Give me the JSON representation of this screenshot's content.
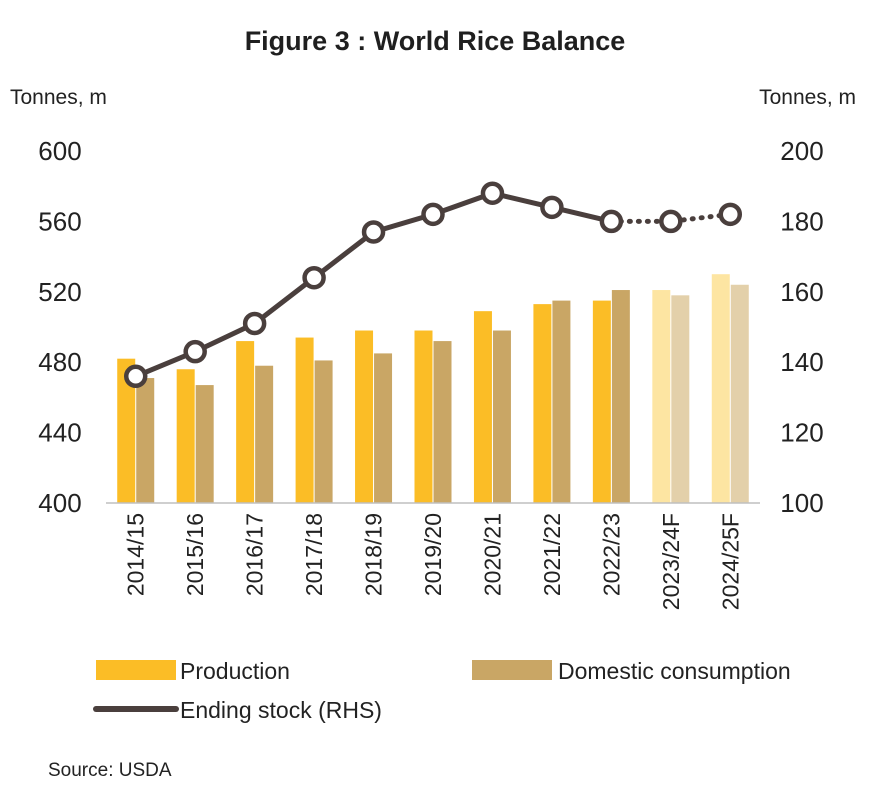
{
  "chart_data": {
    "type": "bar",
    "title": "Figure 3 : World Rice Balance",
    "ylabel_left": "Tonnes, m",
    "ylabel_right": "Tonnes, m",
    "ylim_left": [
      400,
      600
    ],
    "yticks_left": [
      "400",
      "440",
      "480",
      "520",
      "560",
      "600"
    ],
    "ylim_right": [
      100,
      200
    ],
    "yticks_right": [
      "100",
      "120",
      "140",
      "160",
      "180",
      "200"
    ],
    "categories": [
      "2014/15",
      "2015/16",
      "2016/17",
      "2017/18",
      "2018/19",
      "2019/20",
      "2020/21",
      "2021/22",
      "2022/23",
      "2023/24F",
      "2024/25F"
    ],
    "forecast_from_index": 9,
    "series": [
      {
        "name": "Production",
        "type": "bar",
        "axis": "left",
        "color": "#fbbd26",
        "forecast_color": "#fde5a2",
        "values": [
          482,
          476,
          492,
          494,
          498,
          498,
          509,
          513,
          515,
          521,
          530
        ]
      },
      {
        "name": "Domestic consumption",
        "type": "bar",
        "axis": "left",
        "color": "#c9a665",
        "forecast_color": "#e3d0aa",
        "values": [
          471,
          467,
          478,
          481,
          485,
          492,
          498,
          515,
          521,
          518,
          524
        ]
      },
      {
        "name": "Ending stock (RHS)",
        "type": "line",
        "axis": "right",
        "color": "#4a3f3d",
        "values": [
          136,
          143,
          151,
          164,
          177,
          182,
          188,
          184,
          180,
          180,
          182
        ]
      }
    ],
    "grid": false,
    "legend_position": "bottom"
  },
  "source": "Source: USDA"
}
